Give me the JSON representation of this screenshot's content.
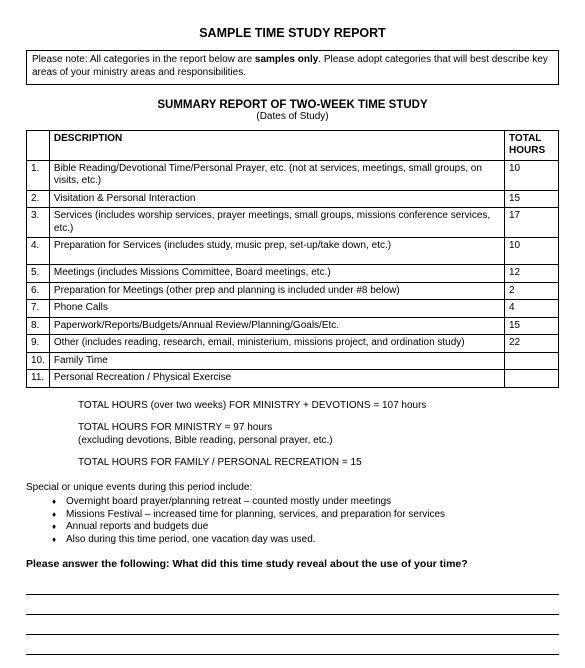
{
  "title": "SAMPLE TIME STUDY REPORT",
  "note": {
    "prefix": "Please note:  All categories in the report below are ",
    "bold": "samples only",
    "suffix": ".  Please adopt categories that will best describe key areas of your ministry areas and responsibilities."
  },
  "subtitle": "SUMMARY REPORT OF TWO-WEEK TIME STUDY",
  "dates": "(Dates of Study)",
  "table": {
    "header": {
      "desc": "DESCRIPTION",
      "hours": "TOTAL HOURS"
    },
    "rows": [
      {
        "n": "1.",
        "desc": "Bible Reading/Devotional Time/Personal Prayer, etc. (not at services, meetings, small groups, on visits, etc.)",
        "hours": "10"
      },
      {
        "n": "2.",
        "desc": "Visitation & Personal Interaction",
        "hours": "15"
      },
      {
        "n": "3.",
        "desc": "Services (includes worship services, prayer meetings, small groups, missions conference services, etc.)",
        "hours": "17"
      },
      {
        "n": "4.",
        "desc": "Preparation for Services (includes study, music prep, set-up/take down, etc.)",
        "hours": "10"
      },
      {
        "n": "5.",
        "desc": "Meetings (includes Missions Committee, Board meetings, etc.)",
        "hours": "12"
      },
      {
        "n": "6.",
        "desc": "Preparation for Meetings (other prep and planning is included under #8 below)",
        "hours": "2"
      },
      {
        "n": "7.",
        "desc": "Phone Calls",
        "hours": "4"
      },
      {
        "n": "8.",
        "desc": "Paperwork/Reports/Budgets/Annual Review/Planning/Goals/Etc.",
        "hours": "15"
      },
      {
        "n": "9.",
        "desc": "Other (includes reading, research, email, ministerium, missions project, and ordination study)",
        "hours": "22"
      },
      {
        "n": "10.",
        "desc": "Family Time",
        "hours": ""
      },
      {
        "n": "11.",
        "desc": "Personal Recreation / Physical Exercise",
        "hours": ""
      }
    ],
    "extra_row4_height": 22
  },
  "totals": {
    "line1": "TOTAL HOURS (over two weeks) FOR MINISTRY + DEVOTIONS = 107 hours",
    "line2a": "TOTAL HOURS FOR MINISTRY = 97 hours",
    "line2b": "(excluding devotions, Bible reading, personal prayer, etc.)",
    "line3": "TOTAL HOURS FOR FAMILY / PERSONAL RECREATION = 15"
  },
  "special": {
    "label": "Special or unique events during this period include:",
    "items": [
      "Overnight board prayer/planning retreat – counted mostly under meetings",
      "Missions Festival – increased time for planning, services, and preparation for services",
      "Annual reports and budgets due",
      "Also during this time period, one vacation day was used."
    ]
  },
  "question": "Please answer the following: What did this time study reveal about the use of your time?",
  "answer_lines": 4,
  "style": {
    "page_bg": "#ffffff",
    "text_color": "#000000",
    "border_color": "#000000",
    "font_family": "Arial, Helvetica, sans-serif",
    "title_fontsize": 12.5,
    "body_fontsize": 10,
    "subtitle_fontsize": 11.5,
    "question_fontsize": 10.5
  }
}
